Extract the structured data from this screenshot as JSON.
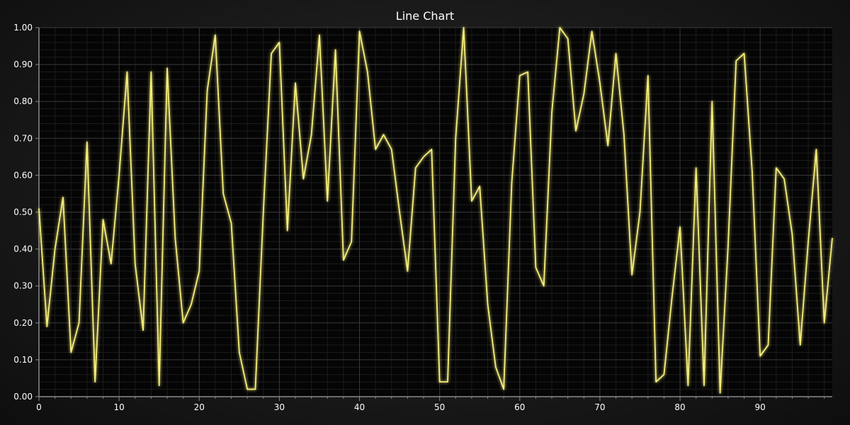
{
  "chart_data": {
    "type": "line",
    "title": "Line Chart",
    "xlabel": "",
    "ylabel": "",
    "xlim": [
      0,
      99
    ],
    "ylim": [
      0,
      1
    ],
    "x_ticks": [
      0,
      10,
      20,
      30,
      40,
      50,
      60,
      70,
      80,
      90
    ],
    "x_tick_labels": [
      "0",
      "10",
      "20",
      "30",
      "40",
      "50",
      "60",
      "70",
      "80",
      "90"
    ],
    "y_ticks": [
      0,
      0.1,
      0.2,
      0.3,
      0.4,
      0.5,
      0.6,
      0.7,
      0.8,
      0.9,
      1.0
    ],
    "y_tick_labels": [
      "0.00",
      "0.10",
      "0.20",
      "0.30",
      "0.40",
      "0.50",
      "0.60",
      "0.70",
      "0.80",
      "0.90",
      "1.00"
    ],
    "grid": true,
    "colors": {
      "series": "#f5ee7a",
      "plot_background": "#050505",
      "grid_major": "#3a3a3a",
      "grid_minor": "#1c1c1c",
      "axis": "#8a8a8a"
    },
    "series": [
      {
        "values": [
          0.51,
          0.19,
          0.4,
          0.54,
          0.12,
          0.2,
          0.69,
          0.04,
          0.48,
          0.36,
          0.6,
          0.88,
          0.36,
          0.18,
          0.88,
          0.03,
          0.89,
          0.43,
          0.2,
          0.25,
          0.34,
          0.83,
          0.98,
          0.55,
          0.47,
          0.12,
          0.02,
          0.02,
          0.5,
          0.93,
          0.96,
          0.45,
          0.85,
          0.59,
          0.71,
          0.98,
          0.53,
          0.94,
          0.37,
          0.42,
          0.99,
          0.88,
          0.67,
          0.71,
          0.67,
          0.5,
          0.34,
          0.62,
          0.65,
          0.67,
          0.04,
          0.04,
          0.7,
          1.0,
          0.53,
          0.57,
          0.25,
          0.08,
          0.02,
          0.58,
          0.87,
          0.88,
          0.35,
          0.3,
          0.77,
          1.0,
          0.97,
          0.72,
          0.82,
          0.99,
          0.85,
          0.68,
          0.93,
          0.71,
          0.33,
          0.5,
          0.87,
          0.04,
          0.06,
          0.27,
          0.46,
          0.03,
          0.62,
          0.03,
          0.8,
          0.01,
          0.41,
          0.91,
          0.93,
          0.61,
          0.11,
          0.14,
          0.62,
          0.59,
          0.44,
          0.14,
          0.42,
          0.67,
          0.2,
          0.43
        ]
      }
    ]
  }
}
